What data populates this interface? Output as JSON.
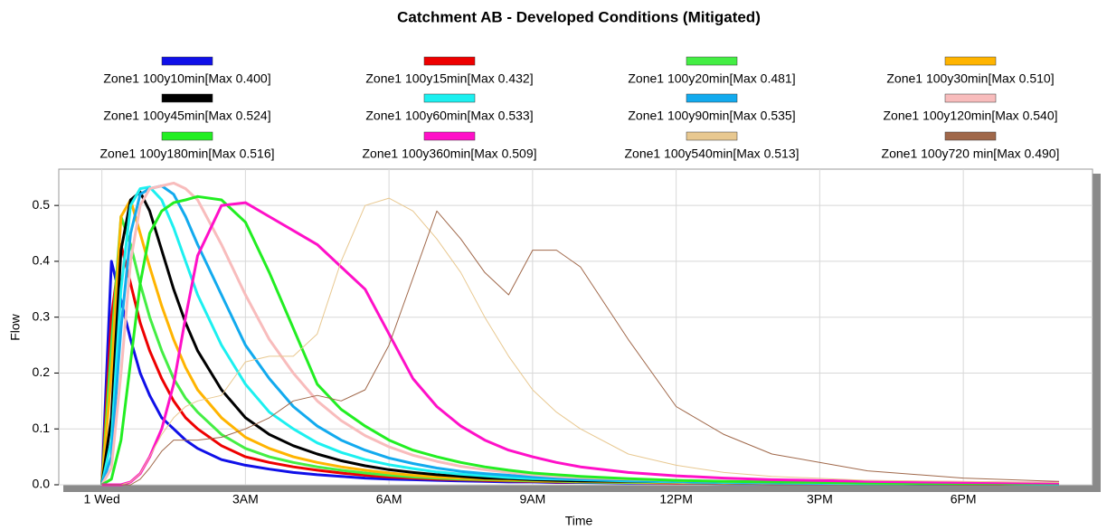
{
  "chart_data": {
    "type": "line",
    "title": "Catchment AB - Developed Conditions (Mitigated)",
    "x_label": "Time",
    "y_label": "Flow",
    "x": [
      0,
      0.2,
      0.4,
      0.6,
      0.8,
      1,
      1.25,
      1.5,
      1.75,
      2,
      2.5,
      3,
      3.5,
      4,
      4.5,
      5,
      5.5,
      6,
      6.5,
      7,
      7.5,
      8,
      8.5,
      9,
      9.5,
      10,
      11,
      12,
      13,
      14,
      16,
      18,
      20
    ],
    "xlim": [
      -0.9,
      20.7
    ],
    "xticks": [
      {
        "value": 0,
        "label": "1 Wed"
      },
      {
        "value": 3,
        "label": "3AM"
      },
      {
        "value": 6,
        "label": "6AM"
      },
      {
        "value": 9,
        "label": "9AM"
      },
      {
        "value": 12,
        "label": "12PM"
      },
      {
        "value": 15,
        "label": "3PM"
      },
      {
        "value": 18,
        "label": "6PM"
      }
    ],
    "ylim": [
      0,
      0.565
    ],
    "yticks": [
      {
        "value": 0,
        "label": "0.0"
      },
      0.1,
      0.2,
      0.3,
      0.4,
      0.5
    ],
    "grid": true,
    "series": [
      {
        "name": "Zone1 100y10min[Max 0.400]",
        "color": "#1010e8",
        "width": 3,
        "values": [
          0,
          0.4,
          0.33,
          0.26,
          0.2,
          0.16,
          0.12,
          0.1,
          0.08,
          0.065,
          0.045,
          0.035,
          0.028,
          0.022,
          0.018,
          0.015,
          0.012,
          0.01,
          0.009,
          0.008,
          0.007,
          0.006,
          0.005,
          0.005,
          0.004,
          0.004,
          0.003,
          0.003,
          0.002,
          0.002,
          0.002,
          0.001,
          0.001
        ]
      },
      {
        "name": "Zone1 100y15min[Max 0.432]",
        "color": "#ee0000",
        "width": 3,
        "values": [
          0,
          0.3,
          0.43,
          0.36,
          0.29,
          0.24,
          0.19,
          0.15,
          0.12,
          0.1,
          0.07,
          0.05,
          0.04,
          0.032,
          0.026,
          0.021,
          0.017,
          0.014,
          0.012,
          0.01,
          0.009,
          0.008,
          0.007,
          0.006,
          0.005,
          0.005,
          0.004,
          0.003,
          0.003,
          0.002,
          0.002,
          0.001,
          0.001
        ]
      },
      {
        "name": "Zone1 100y20min[Max 0.481]",
        "color": "#44ee44",
        "width": 3,
        "values": [
          0,
          0.25,
          0.48,
          0.43,
          0.36,
          0.3,
          0.24,
          0.19,
          0.155,
          0.13,
          0.09,
          0.065,
          0.05,
          0.04,
          0.032,
          0.026,
          0.021,
          0.017,
          0.014,
          0.012,
          0.01,
          0.009,
          0.008,
          0.007,
          0.006,
          0.005,
          0.004,
          0.004,
          0.003,
          0.003,
          0.002,
          0.002,
          0.001
        ]
      },
      {
        "name": "Zone1 100y30min[Max 0.510]",
        "color": "#ffb400",
        "width": 3,
        "values": [
          0,
          0.2,
          0.48,
          0.51,
          0.45,
          0.39,
          0.32,
          0.26,
          0.21,
          0.17,
          0.12,
          0.085,
          0.065,
          0.05,
          0.04,
          0.032,
          0.026,
          0.021,
          0.017,
          0.014,
          0.012,
          0.01,
          0.009,
          0.008,
          0.007,
          0.006,
          0.005,
          0.004,
          0.003,
          0.003,
          0.002,
          0.002,
          0.001
        ]
      },
      {
        "name": "Zone1 100y45min[Max 0.524]",
        "color": "#000000",
        "width": 3,
        "values": [
          0,
          0.12,
          0.42,
          0.51,
          0.524,
          0.49,
          0.42,
          0.35,
          0.29,
          0.24,
          0.17,
          0.12,
          0.09,
          0.07,
          0.055,
          0.043,
          0.034,
          0.027,
          0.022,
          0.018,
          0.015,
          0.012,
          0.011,
          0.009,
          0.008,
          0.007,
          0.006,
          0.005,
          0.004,
          0.003,
          0.002,
          0.002,
          0.001
        ]
      },
      {
        "name": "Zone1 100y60min[Max 0.533]",
        "color": "#1cf0f0",
        "width": 3,
        "values": [
          0,
          0.08,
          0.35,
          0.5,
          0.53,
          0.533,
          0.51,
          0.46,
          0.4,
          0.34,
          0.25,
          0.18,
          0.13,
          0.1,
          0.075,
          0.058,
          0.045,
          0.036,
          0.029,
          0.023,
          0.019,
          0.016,
          0.013,
          0.011,
          0.01,
          0.009,
          0.007,
          0.005,
          0.004,
          0.003,
          0.002,
          0.002,
          0.001
        ]
      },
      {
        "name": "Zone1 100y90min[Max 0.535]",
        "color": "#12aaee",
        "width": 3,
        "values": [
          0,
          0.05,
          0.28,
          0.45,
          0.52,
          0.53,
          0.535,
          0.52,
          0.48,
          0.43,
          0.34,
          0.25,
          0.19,
          0.14,
          0.105,
          0.08,
          0.062,
          0.048,
          0.038,
          0.03,
          0.024,
          0.02,
          0.017,
          0.014,
          0.012,
          0.01,
          0.008,
          0.006,
          0.005,
          0.004,
          0.003,
          0.002,
          0.001
        ]
      },
      {
        "name": "Zone1 100y120min[Max 0.540]",
        "color": "#f8bcbc",
        "width": 3,
        "values": [
          0,
          0.03,
          0.2,
          0.4,
          0.5,
          0.53,
          0.535,
          0.54,
          0.53,
          0.51,
          0.43,
          0.34,
          0.26,
          0.2,
          0.15,
          0.115,
          0.088,
          0.068,
          0.053,
          0.042,
          0.033,
          0.027,
          0.022,
          0.018,
          0.015,
          0.013,
          0.01,
          0.008,
          0.006,
          0.005,
          0.003,
          0.002,
          0.002
        ]
      },
      {
        "name": "Zone1 100y180min[Max 0.516]",
        "color": "#22ee22",
        "width": 3,
        "values": [
          0,
          0.01,
          0.08,
          0.22,
          0.36,
          0.45,
          0.49,
          0.505,
          0.51,
          0.516,
          0.51,
          0.47,
          0.38,
          0.28,
          0.18,
          0.135,
          0.105,
          0.08,
          0.062,
          0.05,
          0.04,
          0.032,
          0.026,
          0.021,
          0.018,
          0.015,
          0.011,
          0.008,
          0.006,
          0.005,
          0.003,
          0.002,
          0.002
        ]
      },
      {
        "name": "Zone1 100y360min[Max 0.509]",
        "color": "#ff10c8",
        "width": 3,
        "values": [
          0,
          0,
          0,
          0.005,
          0.02,
          0.05,
          0.1,
          0.18,
          0.3,
          0.41,
          0.5,
          0.505,
          0.48,
          0.455,
          0.43,
          0.39,
          0.35,
          0.27,
          0.19,
          0.14,
          0.105,
          0.08,
          0.062,
          0.05,
          0.04,
          0.032,
          0.022,
          0.016,
          0.012,
          0.009,
          0.006,
          0.004,
          0.003
        ]
      },
      {
        "name": "Zone1 100y540min[Max 0.513]",
        "color": "#e8c890",
        "width": 1,
        "values": [
          0,
          0,
          0,
          0.005,
          0.02,
          0.05,
          0.09,
          0.12,
          0.14,
          0.15,
          0.16,
          0.22,
          0.23,
          0.23,
          0.27,
          0.4,
          0.5,
          0.513,
          0.49,
          0.44,
          0.38,
          0.3,
          0.23,
          0.17,
          0.13,
          0.1,
          0.055,
          0.035,
          0.022,
          0.015,
          0.008,
          0.006,
          0.004
        ]
      },
      {
        "name": "Zone1 100y720 min[Max 0.490]",
        "color": "#a0684a",
        "width": 1,
        "values": [
          0,
          0,
          0,
          0,
          0.01,
          0.03,
          0.06,
          0.08,
          0.08,
          0.08,
          0.085,
          0.1,
          0.12,
          0.15,
          0.16,
          0.15,
          0.17,
          0.25,
          0.37,
          0.49,
          0.44,
          0.38,
          0.34,
          0.42,
          0.42,
          0.39,
          0.26,
          0.14,
          0.09,
          0.055,
          0.025,
          0.012,
          0.006
        ]
      }
    ]
  }
}
